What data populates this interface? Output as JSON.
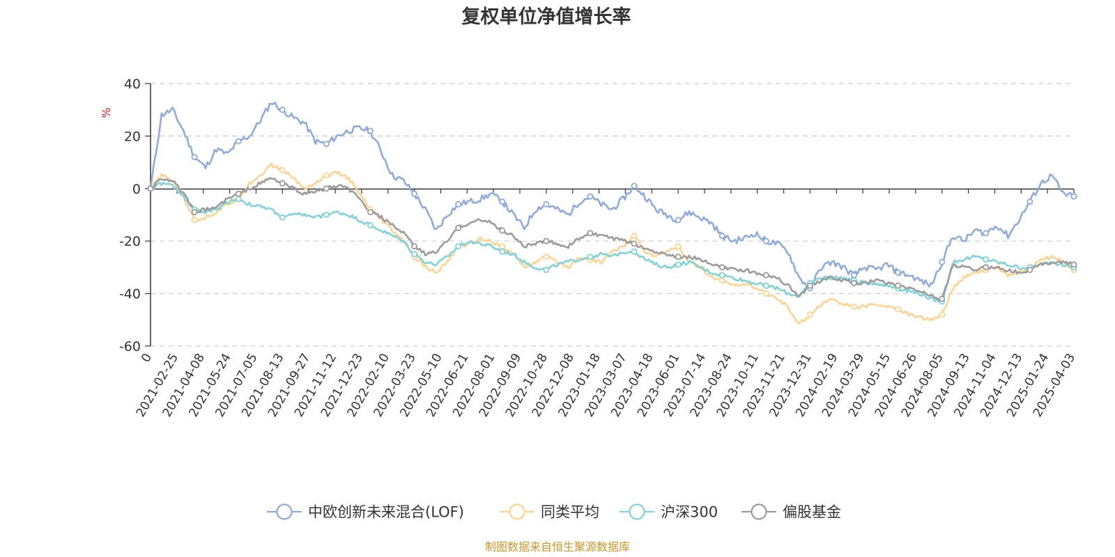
{
  "chart_data": {
    "type": "line",
    "title": "复权单位净值增长率",
    "ylabel": "%",
    "ylim": [
      -60,
      40
    ],
    "yticks": [
      40,
      20,
      0,
      -20,
      -40,
      -60
    ],
    "xticks": [
      "0",
      "2021-02-25",
      "2021-04-08",
      "2021-05-24",
      "2021-07-05",
      "2021-08-13",
      "2021-09-27",
      "2021-11-12",
      "2021-12-23",
      "2022-02-10",
      "2022-03-23",
      "2022-05-10",
      "2022-06-21",
      "2022-08-01",
      "2022-09-09",
      "2022-10-28",
      "2022-12-08",
      "2023-01-18",
      "2023-03-07",
      "2023-04-18",
      "2023-06-01",
      "2023-07-14",
      "2023-08-24",
      "2023-10-11",
      "2023-11-21",
      "2023-12-31",
      "2024-02-19",
      "2024-03-29",
      "2024-05-15",
      "2024-06-26",
      "2024-08-05",
      "2024-09-13",
      "2024-11-04",
      "2024-12-13",
      "2025-01-24",
      "2025-04-03"
    ],
    "legend_position": "bottom",
    "series": [
      {
        "name": "中欧创新未来混合(LOF)",
        "color": "#8eabdb",
        "values": [
          0,
          28,
          30,
          22,
          12,
          8,
          15,
          13,
          18,
          20,
          26,
          33,
          30,
          27,
          25,
          18,
          17,
          20,
          22,
          23,
          22,
          14,
          5,
          3,
          -2,
          -8,
          -16,
          -10,
          -6,
          -5,
          -4,
          -2,
          -5,
          -10,
          -15,
          -8,
          -6,
          -8,
          -10,
          -5,
          -3,
          -6,
          -8,
          -4,
          1,
          -3,
          -8,
          -10,
          -12,
          -9,
          -11,
          -13,
          -18,
          -20,
          -19,
          -17,
          -20,
          -21,
          -24,
          -34,
          -38,
          -30,
          -28,
          -30,
          -33,
          -30,
          -31,
          -29,
          -32,
          -33,
          -35,
          -37,
          -28,
          -18,
          -20,
          -16,
          -17,
          -14,
          -18,
          -12,
          -5,
          2,
          5,
          -2,
          -3
        ]
      },
      {
        "name": "同类平均",
        "color": "#fcd490",
        "values": [
          0,
          5,
          3,
          -3,
          -12,
          -11,
          -9,
          -6,
          -4,
          2,
          5,
          9,
          7,
          4,
          0,
          2,
          5,
          6,
          4,
          -2,
          -8,
          -12,
          -16,
          -20,
          -26,
          -30,
          -32,
          -28,
          -22,
          -21,
          -19,
          -20,
          -22,
          -25,
          -30,
          -28,
          -26,
          -28,
          -30,
          -26,
          -27,
          -28,
          -24,
          -22,
          -18,
          -24,
          -26,
          -24,
          -22,
          -28,
          -30,
          -34,
          -35,
          -37,
          -36,
          -38,
          -40,
          -42,
          -45,
          -52,
          -48,
          -44,
          -42,
          -44,
          -45,
          -45,
          -44,
          -45,
          -46,
          -48,
          -49,
          -50,
          -48,
          -38,
          -34,
          -32,
          -31,
          -30,
          -33,
          -32,
          -30,
          -27,
          -26,
          -28,
          -31
        ]
      },
      {
        "name": "沪深300",
        "color": "#7fd2d8",
        "values": [
          0,
          2,
          1,
          -3,
          -8,
          -9,
          -8,
          -5,
          -4,
          -6,
          -7,
          -8,
          -11,
          -10,
          -10,
          -11,
          -10,
          -9,
          -10,
          -12,
          -14,
          -16,
          -18,
          -20,
          -25,
          -28,
          -29,
          -26,
          -22,
          -20,
          -21,
          -22,
          -24,
          -25,
          -28,
          -30,
          -31,
          -29,
          -28,
          -27,
          -26,
          -25,
          -26,
          -24,
          -24,
          -27,
          -29,
          -30,
          -29,
          -28,
          -30,
          -32,
          -33,
          -34,
          -35,
          -36,
          -37,
          -38,
          -40,
          -41,
          -36,
          -34,
          -34,
          -34,
          -35,
          -36,
          -36,
          -37,
          -38,
          -39,
          -40,
          -42,
          -43,
          -28,
          -27,
          -26,
          -27,
          -28,
          -29,
          -30,
          -30,
          -29,
          -28,
          -29,
          -30
        ]
      },
      {
        "name": "偏股基金",
        "color": "#9b9b9b",
        "values": [
          0,
          4,
          3,
          -2,
          -9,
          -8,
          -7,
          -4,
          -2,
          0,
          2,
          4,
          2,
          0,
          -2,
          -1,
          0,
          1,
          0,
          -4,
          -9,
          -11,
          -14,
          -17,
          -22,
          -25,
          -24,
          -20,
          -15,
          -13,
          -12,
          -13,
          -16,
          -18,
          -22,
          -21,
          -20,
          -21,
          -22,
          -19,
          -17,
          -18,
          -19,
          -20,
          -21,
          -23,
          -24,
          -25,
          -26,
          -26,
          -27,
          -29,
          -30,
          -31,
          -31,
          -32,
          -33,
          -34,
          -37,
          -41,
          -37,
          -35,
          -34,
          -35,
          -36,
          -36,
          -35,
          -36,
          -37,
          -38,
          -39,
          -41,
          -42,
          -29,
          -30,
          -31,
          -30,
          -30,
          -31,
          -32,
          -31,
          -29,
          -28,
          -28,
          -29
        ]
      }
    ]
  },
  "source_text": "制图数据来自恒生聚源数据库"
}
